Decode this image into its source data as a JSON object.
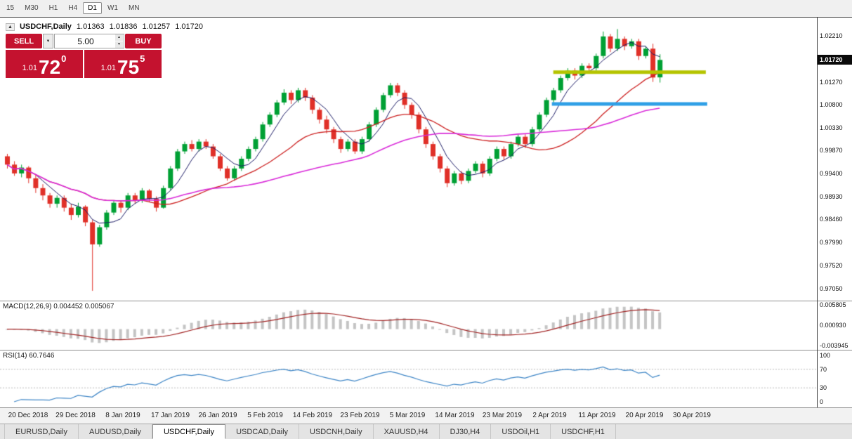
{
  "toolbar": {
    "timeframes": [
      "15",
      "M30",
      "H1",
      "H4",
      "D1",
      "W1",
      "MN"
    ],
    "active_timeframe": "D1"
  },
  "chart_header": {
    "title": "USDCHF,Daily",
    "open": "1.01363",
    "high": "1.01836",
    "low": "1.01257",
    "close": "1.01720"
  },
  "trade_panel": {
    "sell_label": "SELL",
    "buy_label": "BUY",
    "volume": "5.00",
    "sell_price_prefix": "1.01",
    "sell_price_big": "72",
    "sell_price_sup": "0",
    "buy_price_prefix": "1.01",
    "buy_price_big": "75",
    "buy_price_sup": "5"
  },
  "price_axis": {
    "labels": [
      "1.02210",
      "1.01270",
      "1.00800",
      "1.00330",
      "0.99870",
      "0.99400",
      "0.98930",
      "0.98460",
      "0.97990",
      "0.97520",
      "0.97050"
    ],
    "current_price": "1.01720"
  },
  "macd_panel": {
    "label": "MACD(12,26,9) 0.004452 0.005067",
    "axis_labels": [
      "0.005805",
      "0.000930",
      "-0.003945"
    ],
    "range": [
      0.005805,
      -0.003945
    ]
  },
  "rsi_panel": {
    "label": "RSI(14) 60.7646",
    "axis_labels": [
      "100",
      "70",
      "30",
      "0"
    ],
    "levels": [
      70,
      30
    ],
    "period": 14
  },
  "date_axis": [
    "20 Dec 2018",
    "29 Dec 2018",
    "8 Jan 2019",
    "17 Jan 2019",
    "26 Jan 2019",
    "5 Feb 2019",
    "14 Feb 2019",
    "23 Feb 2019",
    "5 Mar 2019",
    "14 Mar 2019",
    "23 Mar 2019",
    "2 Apr 2019",
    "11 Apr 2019",
    "20 Apr 2019",
    "30 Apr 2019"
  ],
  "tabs": [
    {
      "label": "EURUSD,Daily",
      "active": false
    },
    {
      "label": "AUDUSD,Daily",
      "active": false
    },
    {
      "label": "USDCHF,Daily",
      "active": true
    },
    {
      "label": "USDCAD,Daily",
      "active": false
    },
    {
      "label": "USDCNH,Daily",
      "active": false
    },
    {
      "label": "XAUUSD,H4",
      "active": false
    },
    {
      "label": "DJ30,H4",
      "active": false
    },
    {
      "label": "USDOil,H1",
      "active": false
    },
    {
      "label": "USDCHF,H1",
      "active": false
    }
  ],
  "ui_colors": {
    "accent_red": "#c4122f",
    "price_tag_bg": "#0a0a0a"
  },
  "chart_data": {
    "type": "candlestick",
    "symbol": "USDCHF",
    "period": "Daily",
    "y_min": 0.968,
    "y_max": 1.026,
    "colors": {
      "up": "#00a034",
      "down": "#e03028",
      "ma_fast": "#1c1c66",
      "ma_mid": "#cc2020",
      "ma_slow": "#d92bd9",
      "macd_hist": "#c4c4c4",
      "macd_signal": "#a22525",
      "rsi_line": "#3d85c6"
    },
    "moving_averages": [
      {
        "period": 5,
        "color_key": "ma_fast",
        "width": 1
      },
      {
        "period": 20,
        "color_key": "ma_mid",
        "width": 1.3
      },
      {
        "period": 40,
        "color_key": "ma_slow",
        "width": 1.6
      }
    ],
    "hlines": [
      {
        "price": 1.0147,
        "from_index": 77,
        "to_index": 98.5,
        "color": "#b5c400",
        "width": 5
      },
      {
        "price": 1.0082,
        "from_index": 76.8,
        "to_index": 98.7,
        "color": "#2e9fe6",
        "width": 5
      }
    ],
    "ohlc": [
      [
        0.9975,
        0.998,
        0.995,
        0.9958
      ],
      [
        0.9958,
        0.9965,
        0.9935,
        0.994
      ],
      [
        0.994,
        0.9958,
        0.9932,
        0.9952
      ],
      [
        0.9952,
        0.9955,
        0.992,
        0.993
      ],
      [
        0.993,
        0.9938,
        0.99,
        0.991
      ],
      [
        0.991,
        0.9918,
        0.9885,
        0.9895
      ],
      [
        0.9895,
        0.99,
        0.987,
        0.9878
      ],
      [
        0.9878,
        0.9895,
        0.987,
        0.989
      ],
      [
        0.989,
        0.9895,
        0.9862,
        0.987
      ],
      [
        0.987,
        0.9878,
        0.9845,
        0.9855
      ],
      [
        0.9855,
        0.988,
        0.985,
        0.9872
      ],
      [
        0.9872,
        0.9875,
        0.9832,
        0.984
      ],
      [
        0.984,
        0.9845,
        0.97,
        0.9795
      ],
      [
        0.9795,
        0.9835,
        0.979,
        0.983
      ],
      [
        0.983,
        0.9865,
        0.9825,
        0.986
      ],
      [
        0.986,
        0.9885,
        0.9855,
        0.988
      ],
      [
        0.988,
        0.9885,
        0.986,
        0.987
      ],
      [
        0.987,
        0.99,
        0.9865,
        0.9895
      ],
      [
        0.9895,
        0.99,
        0.9878,
        0.9885
      ],
      [
        0.9885,
        0.991,
        0.988,
        0.9905
      ],
      [
        0.9905,
        0.9908,
        0.9882,
        0.9888
      ],
      [
        0.9888,
        0.9893,
        0.9862,
        0.987
      ],
      [
        0.987,
        0.9915,
        0.9868,
        0.991
      ],
      [
        0.991,
        0.9955,
        0.9905,
        0.995
      ],
      [
        0.995,
        0.999,
        0.9945,
        0.9985
      ],
      [
        0.9985,
        1.0005,
        0.998,
        1.0
      ],
      [
        1.0,
        1.0008,
        0.9985,
        0.999
      ],
      [
        0.999,
        1.001,
        0.9985,
        1.0005
      ],
      [
        1.0005,
        1.001,
        0.999,
        0.9995
      ],
      [
        0.9995,
        1.0,
        0.997,
        0.9975
      ],
      [
        0.9975,
        0.998,
        0.9945,
        0.995
      ],
      [
        0.995,
        0.9955,
        0.9925,
        0.993
      ],
      [
        0.993,
        0.9955,
        0.9925,
        0.995
      ],
      [
        0.995,
        0.9975,
        0.9945,
        0.997
      ],
      [
        0.997,
        0.9995,
        0.9965,
        0.999
      ],
      [
        0.999,
        1.0015,
        0.9985,
        1.001
      ],
      [
        1.001,
        1.0045,
        1.0005,
        1.004
      ],
      [
        1.004,
        1.0065,
        1.0035,
        1.006
      ],
      [
        1.006,
        1.009,
        1.0055,
        1.0085
      ],
      [
        1.0085,
        1.0112,
        1.008,
        1.0105
      ],
      [
        1.0105,
        1.011,
        1.0082,
        1.009
      ],
      [
        1.009,
        1.0115,
        1.0085,
        1.011
      ],
      [
        1.011,
        1.0115,
        1.0088,
        1.0095
      ],
      [
        1.0095,
        1.01,
        1.0062,
        1.007
      ],
      [
        1.007,
        1.0075,
        1.0042,
        1.005
      ],
      [
        1.005,
        1.0058,
        1.0022,
        1.003
      ],
      [
        1.003,
        1.0035,
        1.0002,
        1.001
      ],
      [
        1.001,
        1.0015,
        0.9982,
        0.999
      ],
      [
        0.999,
        1.001,
        0.9985,
        1.0005
      ],
      [
        1.0005,
        1.001,
        0.998,
        0.9985
      ],
      [
        0.9985,
        1.0015,
        0.998,
        1.001
      ],
      [
        1.001,
        1.0045,
        1.0005,
        1.004
      ],
      [
        1.004,
        1.0075,
        1.0035,
        1.007
      ],
      [
        1.007,
        1.0105,
        1.0065,
        1.01
      ],
      [
        1.01,
        1.0125,
        1.0095,
        1.012
      ],
      [
        1.012,
        1.0125,
        1.0098,
        1.0105
      ],
      [
        1.0105,
        1.011,
        1.0072,
        1.008
      ],
      [
        1.008,
        1.0085,
        1.0052,
        1.006
      ],
      [
        1.006,
        1.0065,
        1.0022,
        1.003
      ],
      [
        1.003,
        1.0035,
        0.9992,
        1.0
      ],
      [
        1.0,
        1.0005,
        0.9968,
        0.9975
      ],
      [
        0.9975,
        0.998,
        0.9942,
        0.995
      ],
      [
        0.995,
        0.9955,
        0.9912,
        0.992
      ],
      [
        0.992,
        0.9945,
        0.9915,
        0.994
      ],
      [
        0.994,
        0.9945,
        0.9918,
        0.9925
      ],
      [
        0.9925,
        0.995,
        0.992,
        0.9945
      ],
      [
        0.9945,
        0.9965,
        0.994,
        0.996
      ],
      [
        0.996,
        0.9965,
        0.9932,
        0.994
      ],
      [
        0.994,
        0.9975,
        0.9935,
        0.997
      ],
      [
        0.997,
        0.9995,
        0.9965,
        0.999
      ],
      [
        0.999,
        0.9995,
        0.9968,
        0.9975
      ],
      [
        0.9975,
        1.0005,
        0.997,
        1.0
      ],
      [
        1.0,
        1.002,
        0.9995,
        1.0015
      ],
      [
        1.0015,
        1.002,
        0.9992,
        1.0
      ],
      [
        1.0,
        1.0035,
        0.9995,
        1.003
      ],
      [
        1.003,
        1.0065,
        1.0025,
        1.006
      ],
      [
        1.006,
        1.0095,
        1.0055,
        1.009
      ],
      [
        1.009,
        1.0115,
        1.0085,
        1.011
      ],
      [
        1.011,
        1.014,
        1.0105,
        1.0135
      ],
      [
        1.0135,
        1.0155,
        1.013,
        1.015
      ],
      [
        1.015,
        1.0155,
        1.0132,
        1.014
      ],
      [
        1.014,
        1.0165,
        1.0135,
        1.016
      ],
      [
        1.016,
        1.0165,
        1.0148,
        1.0155
      ],
      [
        1.0155,
        1.0185,
        1.015,
        1.018
      ],
      [
        1.018,
        1.023,
        1.0175,
        1.022
      ],
      [
        1.022,
        1.0225,
        1.0188,
        1.0195
      ],
      [
        1.0195,
        1.0235,
        1.019,
        1.0215
      ],
      [
        1.0215,
        1.022,
        1.0192,
        1.02
      ],
      [
        1.02,
        1.0215,
        1.0195,
        1.021
      ],
      [
        1.021,
        1.0215,
        1.0172,
        1.018
      ],
      [
        1.018,
        1.02,
        1.0175,
        1.0195
      ],
      [
        1.0195,
        1.0205,
        1.0127,
        1.0136
      ],
      [
        1.01363,
        1.01836,
        1.01257,
        1.0172
      ]
    ]
  }
}
